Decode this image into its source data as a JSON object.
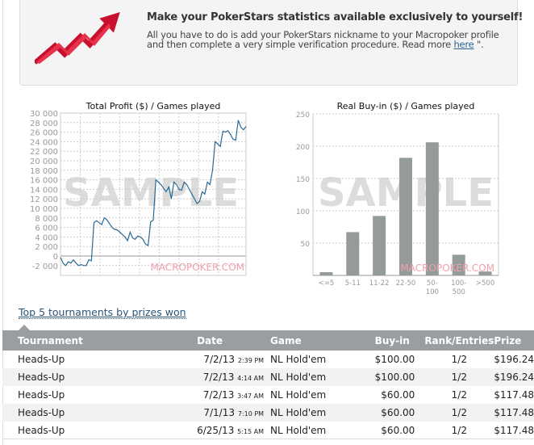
{
  "promo": {
    "title": "Make your PokerStars statistics available exclusively to yourself!",
    "text": "All you have to do is add your PokerStars nickname to your Macropoker profile and then complete a very simple verification procedure. Read more ",
    "link": "here",
    "after_link": " \".",
    "icon": "red-rising-arrow-icon"
  },
  "chart_data": [
    {
      "type": "line",
      "title": "Total Profit ($) / Games played",
      "ylim": [
        -2000,
        30000
      ],
      "yticks": [
        "30 000",
        "28 000",
        "26 000",
        "24 000",
        "22 000",
        "20 000",
        "18 000",
        "16 000",
        "14 000",
        "12 000",
        "10 000",
        "8 000",
        "6 000",
        "4 000",
        "2 000",
        "0",
        "-2 000"
      ],
      "grid": true,
      "watermark": "SAMPLE",
      "logo": "MACROPOKER.COM",
      "color": "#2a6a96",
      "y": [
        -300,
        -1500,
        -2000,
        -1200,
        -1500,
        -800,
        -1500,
        -2000,
        -1800,
        -2000,
        -2000,
        -800,
        -1000,
        7000,
        7400,
        7000,
        6600,
        8000,
        7600,
        6800,
        6000,
        5600,
        5500,
        5000,
        4500,
        4000,
        3200,
        5000,
        3800,
        3500,
        4200,
        4000,
        3500,
        2500,
        2200,
        7200,
        7500,
        16000,
        15500,
        15000,
        14200,
        13500,
        14500,
        12000,
        15500,
        15000,
        14000,
        13800,
        15500,
        15000,
        14000,
        13000,
        12000,
        11000,
        11500,
        13500,
        13000,
        15500,
        15000,
        18000,
        24000,
        23500,
        23000,
        26200,
        26000,
        26300,
        25500,
        24500,
        24300,
        28500,
        27000,
        26500,
        27200
      ]
    },
    {
      "type": "bar",
      "title": "Real Buy-in ($) / Games played",
      "categories": [
        "<=5",
        "5-11",
        "11-22",
        "22-50",
        "50-100",
        "100-500",
        ">500"
      ],
      "category_lines": [
        [
          "<=5"
        ],
        [
          "5-11"
        ],
        [
          "11-22"
        ],
        [
          "22-50"
        ],
        [
          "50-",
          "100"
        ],
        [
          "100-",
          "500"
        ],
        [
          ">500"
        ]
      ],
      "values": [
        5,
        67,
        92,
        182,
        206,
        32,
        6
      ],
      "ylim": [
        0,
        250
      ],
      "yticks": [
        "250",
        "200",
        "150",
        "100",
        "50"
      ],
      "grid": true,
      "watermark": "SAMPLE",
      "logo": "MACROPOKER.COM",
      "color": "#959b9b"
    }
  ],
  "top5": {
    "link": "Top 5 tournaments by prizes won",
    "headers": [
      "Tournament",
      "Date",
      "Game",
      "Buy-in",
      "Rank/Entries",
      "Prize"
    ],
    "rows": [
      {
        "tournament": "Heads-Up",
        "date": "7/2/13",
        "time": "2:39 PM",
        "game": "NL Hold'em",
        "buyin": "$100.00",
        "rank": "1/2",
        "prize": "$196.24"
      },
      {
        "tournament": "Heads-Up",
        "date": "7/2/13",
        "time": "4:14 AM",
        "game": "NL Hold'em",
        "buyin": "$100.00",
        "rank": "1/2",
        "prize": "$196.24"
      },
      {
        "tournament": "Heads-Up",
        "date": "7/2/13",
        "time": "3:47 AM",
        "game": "NL Hold'em",
        "buyin": "$60.00",
        "rank": "1/2",
        "prize": "$117.48"
      },
      {
        "tournament": "Heads-Up",
        "date": "7/1/13",
        "time": "7:10 PM",
        "game": "NL Hold'em",
        "buyin": "$60.00",
        "rank": "1/2",
        "prize": "$117.48"
      },
      {
        "tournament": "Heads-Up",
        "date": "6/25/13",
        "time": "5:15 AM",
        "game": "NL Hold'em",
        "buyin": "$60.00",
        "rank": "1/2",
        "prize": "$117.48"
      }
    ]
  }
}
